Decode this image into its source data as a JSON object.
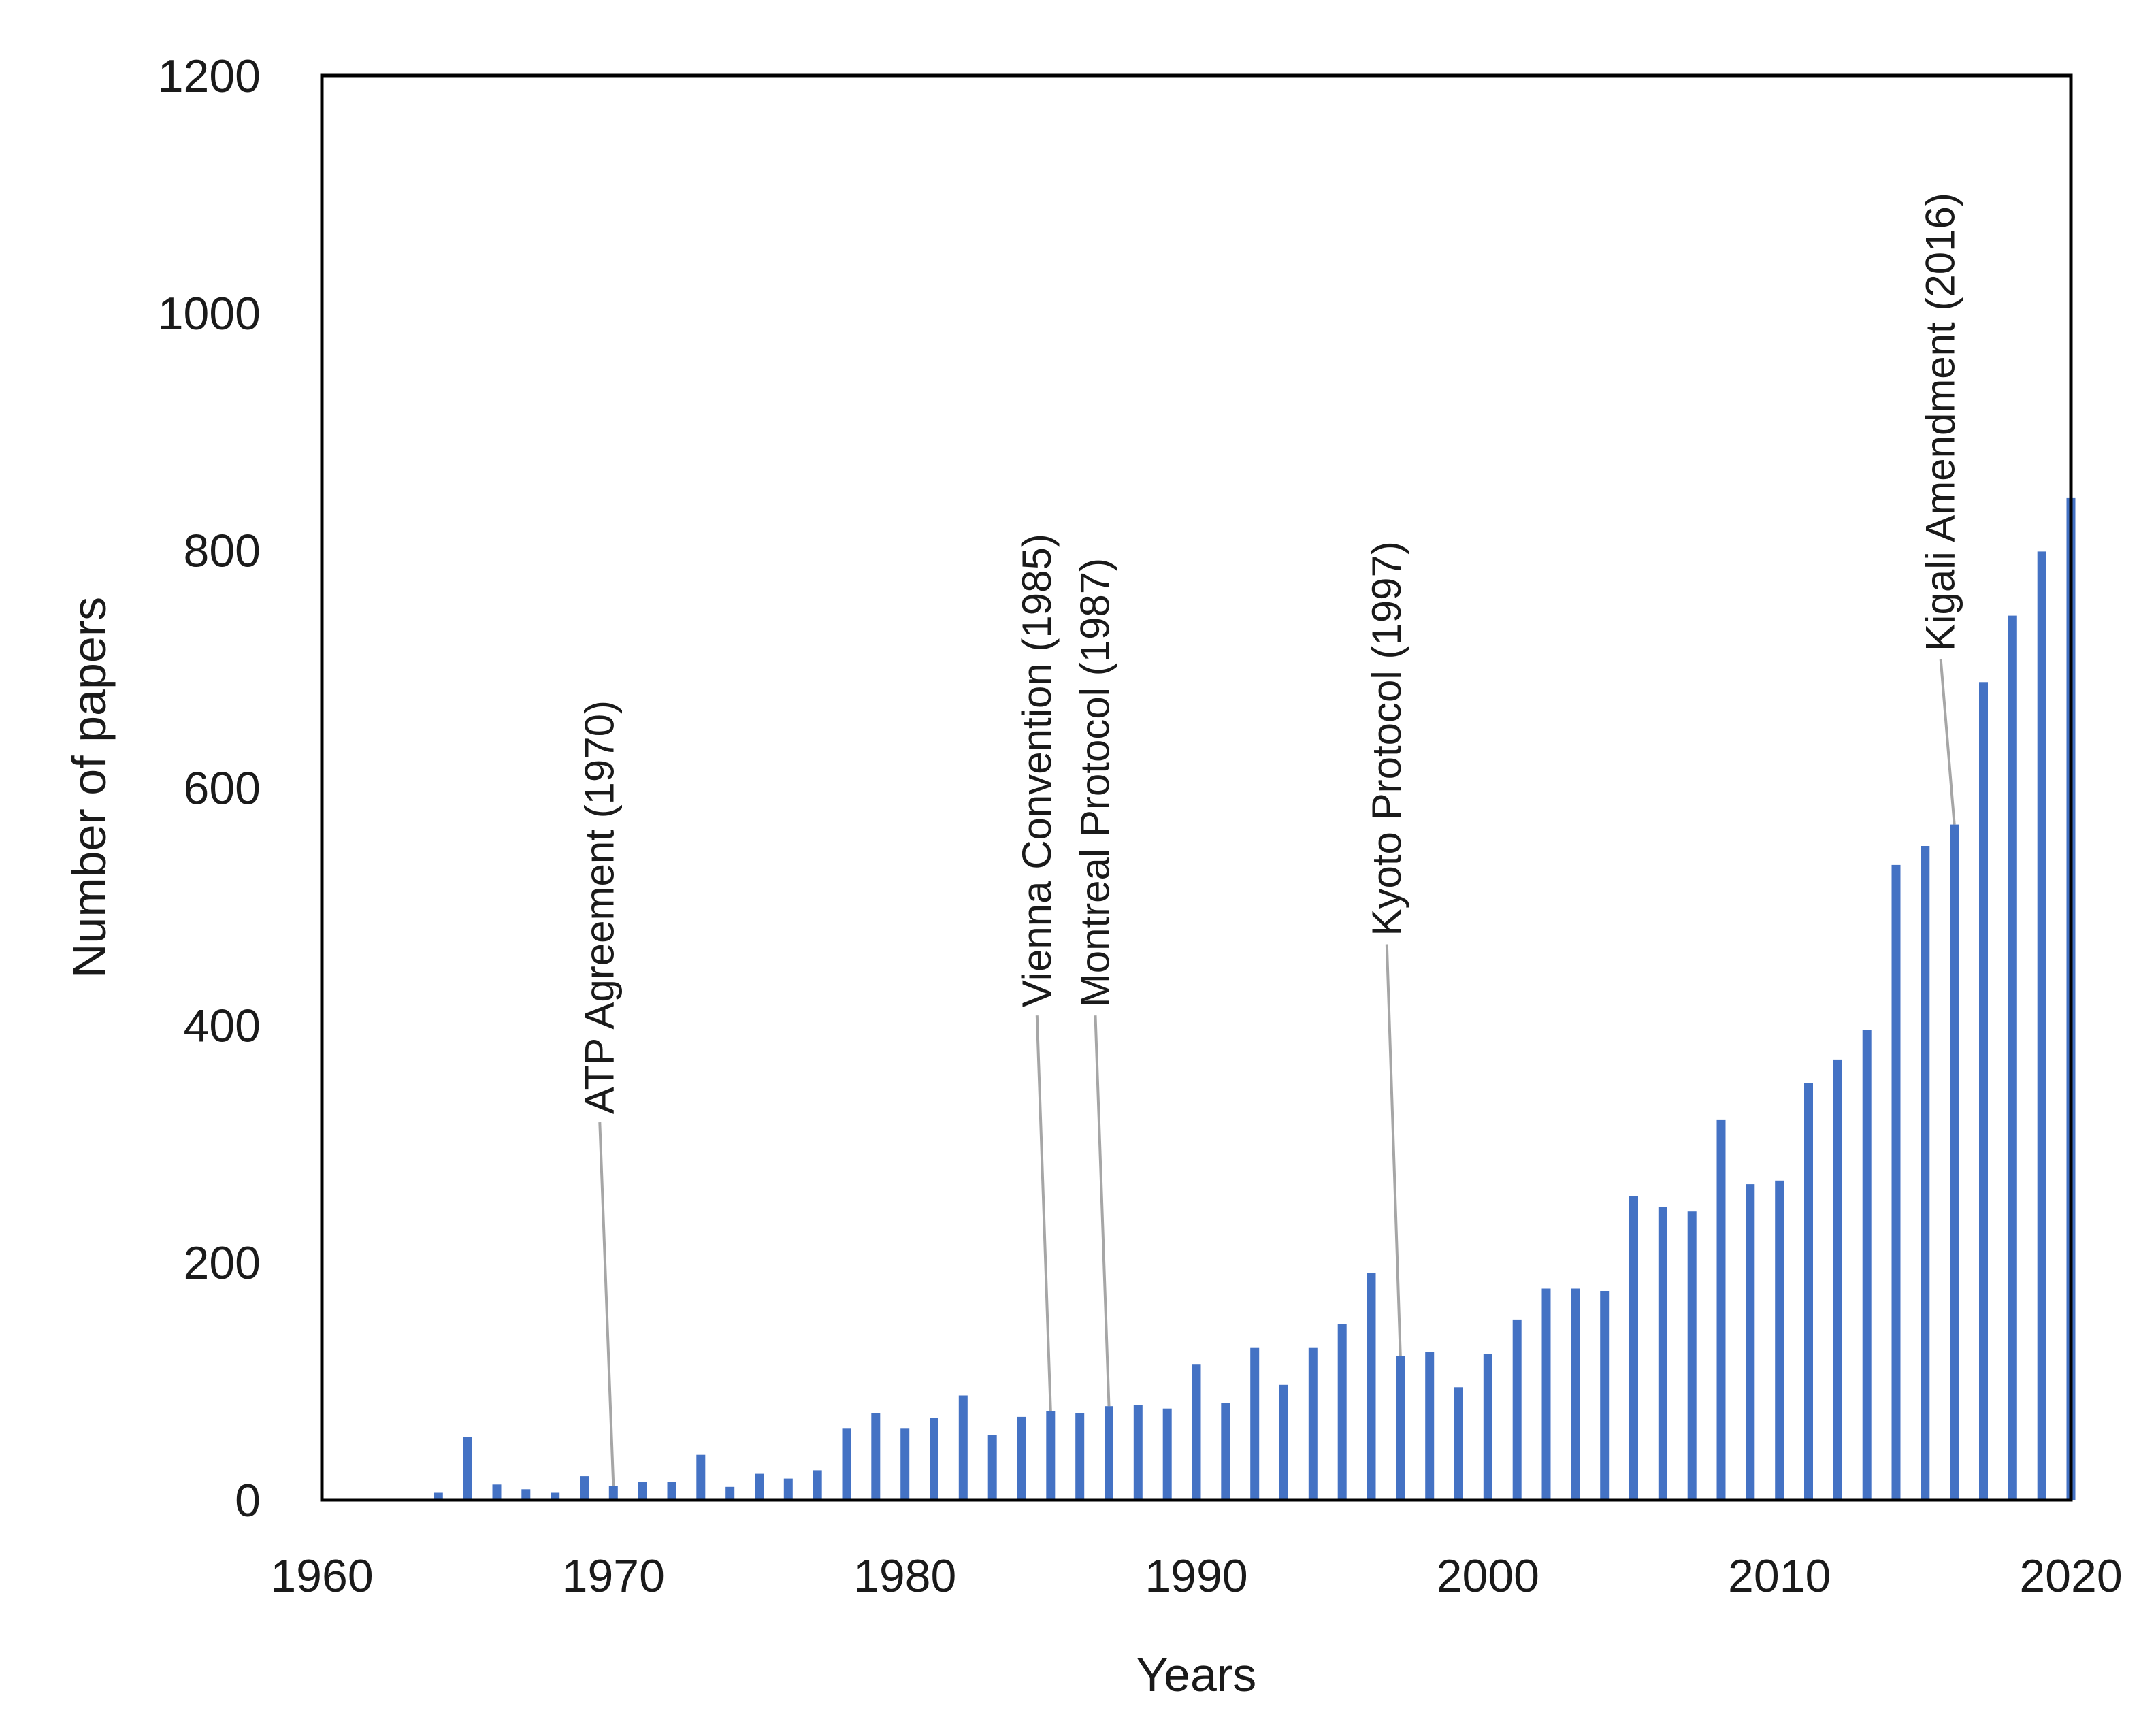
{
  "chart_data": {
    "type": "bar",
    "xlabel": "Years",
    "ylabel": "Number of papers",
    "xlim": [
      1960,
      2020
    ],
    "ylim": [
      0,
      1200
    ],
    "xticks": [
      1960,
      1970,
      1980,
      1990,
      2000,
      2010,
      2020
    ],
    "yticks": [
      0,
      200,
      400,
      600,
      800,
      1000,
      1200
    ],
    "grid": false,
    "bar_color": "#4472C4",
    "annotation_line_color": "#a6a6a6",
    "frame_color": "#000000",
    "x": [
      1964,
      1965,
      1966,
      1967,
      1968,
      1969,
      1970,
      1971,
      1972,
      1973,
      1974,
      1975,
      1976,
      1977,
      1978,
      1979,
      1980,
      1981,
      1982,
      1983,
      1984,
      1985,
      1986,
      1987,
      1988,
      1989,
      1990,
      1991,
      1992,
      1993,
      1994,
      1995,
      1996,
      1997,
      1998,
      1999,
      2000,
      2001,
      2002,
      2003,
      2004,
      2005,
      2006,
      2007,
      2008,
      2009,
      2010,
      2011,
      2012,
      2013,
      2014,
      2015,
      2016,
      2017,
      2018,
      2019,
      2020
    ],
    "values": [
      6,
      53,
      13,
      9,
      6,
      20,
      12,
      15,
      15,
      38,
      11,
      22,
      18,
      25,
      60,
      73,
      60,
      69,
      88,
      55,
      70,
      75,
      73,
      79,
      80,
      77,
      114,
      82,
      128,
      97,
      128,
      148,
      191,
      121,
      125,
      95,
      123,
      152,
      178,
      178,
      176,
      256,
      247,
      243,
      320,
      266,
      269,
      351,
      371,
      396,
      535,
      551,
      569,
      689,
      745,
      799,
      844
    ],
    "annotations": [
      {
        "text": "ATP Agreement (1970)",
        "year": 1970,
        "label_value": 325
      },
      {
        "text": "Vienna Convention (1985)",
        "year": 1985,
        "label_value": 415
      },
      {
        "text": "Montreal Protocol (1987)",
        "year": 1987,
        "label_value": 415
      },
      {
        "text": "Kyoto Protocol (1997)",
        "year": 1997,
        "label_value": 475
      },
      {
        "text": "Kigali Amendment (2016)",
        "year": 2016,
        "label_value": 715
      }
    ]
  }
}
